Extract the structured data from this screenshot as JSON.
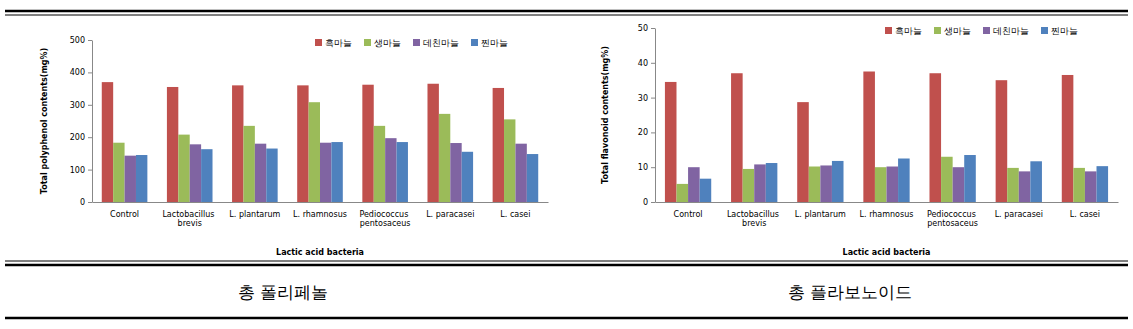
{
  "chart_data": [
    {
      "type": "bar",
      "title": "총 폴리페놀",
      "x_label": "Lactic acid bacteria",
      "y_label": "Total polyphenol contents(mg%)",
      "categories": [
        "Control",
        "Lactobacillus brevis",
        "L. plantarum",
        "L. rhamnosus",
        "Pediococcus pentosaceus",
        "L. paracasei",
        "L. casei"
      ],
      "series": [
        {
          "name": "흑마늘",
          "color": "#c0504d",
          "values": [
            370,
            355,
            360,
            360,
            362,
            365,
            352
          ]
        },
        {
          "name": "생마늘",
          "color": "#9bbb59",
          "values": [
            183,
            208,
            235,
            308,
            235,
            272,
            255
          ]
        },
        {
          "name": "데친마늘",
          "color": "#8064a2",
          "values": [
            143,
            178,
            180,
            183,
            197,
            182,
            180
          ]
        },
        {
          "name": "찐마늘",
          "color": "#4f81bd",
          "values": [
            145,
            163,
            165,
            185,
            185,
            155,
            148
          ]
        }
      ],
      "ylim": [
        0,
        500
      ],
      "yticks": [
        0,
        100,
        200,
        300,
        400,
        500
      ],
      "grid": false,
      "legend": "top-right"
    },
    {
      "type": "bar",
      "title": "총 플라보노이드",
      "x_label": "Lactic acid bacteria",
      "y_label": "Total flavonoid contents(mg%)",
      "categories": [
        "Control",
        "Lactobacillus brevis",
        "L. plantarum",
        "L. rhamnosus",
        "Pediococcus pentosaceus",
        "L. paracasei",
        "L. casei"
      ],
      "series": [
        {
          "name": "흑마늘",
          "color": "#c0504d",
          "values": [
            34.5,
            37,
            28.7,
            37.5,
            37,
            35,
            36.5
          ]
        },
        {
          "name": "생마늘",
          "color": "#9bbb59",
          "values": [
            5.2,
            9.5,
            10.2,
            10,
            13,
            9.8,
            9.8
          ]
        },
        {
          "name": "데친마늘",
          "color": "#8064a2",
          "values": [
            10,
            10.8,
            10.5,
            10.2,
            10,
            8.8,
            8.8
          ]
        },
        {
          "name": "찐마늘",
          "color": "#4f81bd",
          "values": [
            6.7,
            11.2,
            11.8,
            12.5,
            13.5,
            11.7,
            10.3
          ]
        }
      ],
      "ylim": [
        0,
        50
      ],
      "yticks": [
        0,
        10,
        20,
        30,
        40,
        50
      ],
      "grid": false,
      "legend": "top-right"
    }
  ]
}
